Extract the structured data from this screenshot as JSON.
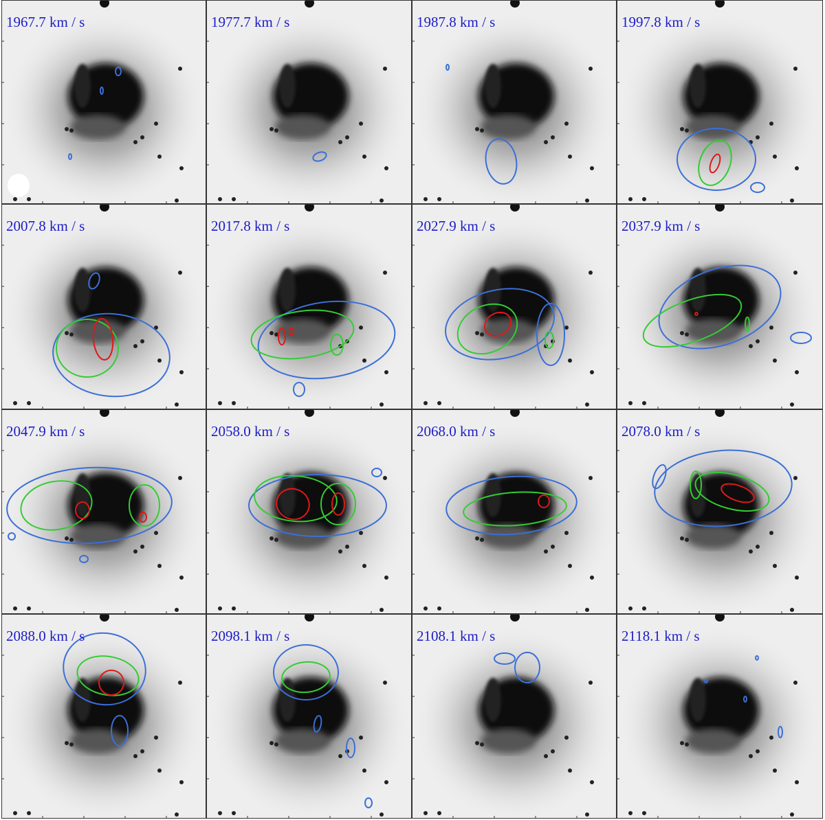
{
  "panels": [
    "1967.7 km / s",
    "1977.7 km / s",
    "1987.8 km / s",
    "1997.8 km / s",
    "2007.8 km / s",
    "2017.8 km / s",
    "2027.9 km / s",
    "2037.9 km / s",
    "2047.9 km / s",
    "2058.0 km / s",
    "2068.0 km / s",
    "2078.0 km / s",
    "2088.0 km / s",
    "2098.1 km / s",
    "2108.1 km / s",
    "2118.1 km / s"
  ]
}
